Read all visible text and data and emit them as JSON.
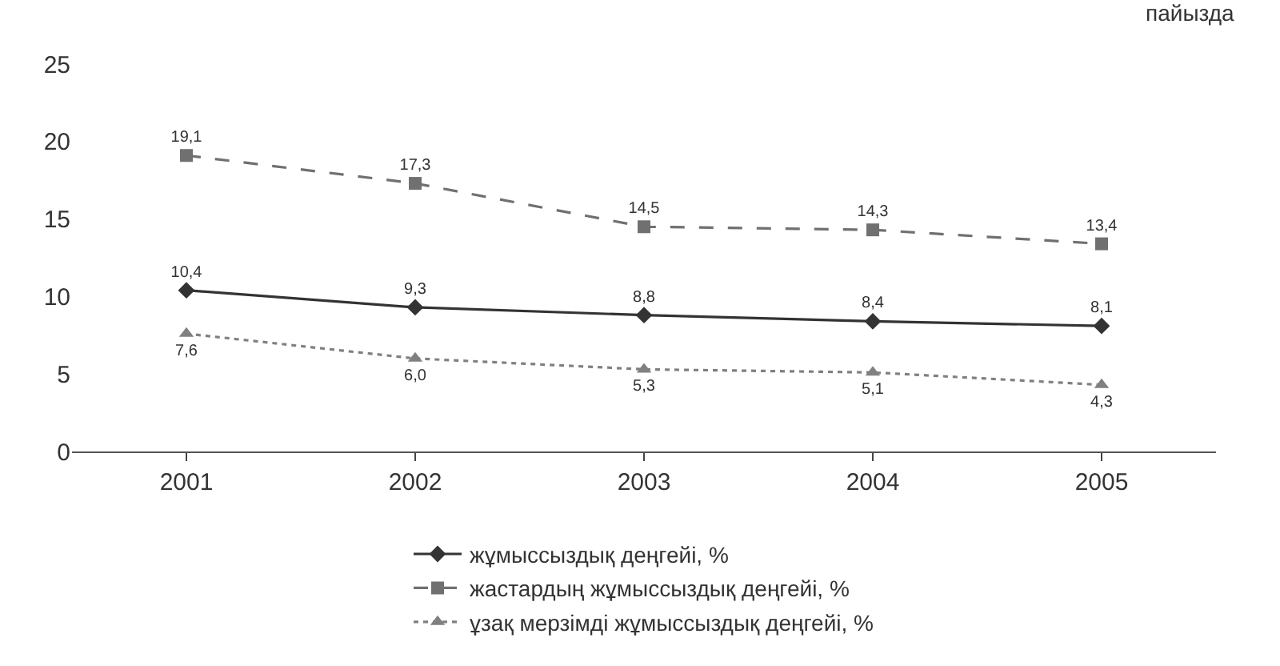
{
  "chart_data": {
    "type": "line",
    "categories": [
      "2001",
      "2002",
      "2003",
      "2004",
      "2005"
    ],
    "series": [
      {
        "name": "жұмыссыздық деңгейі, %",
        "color": "#333333",
        "values": [
          10.4,
          9.3,
          8.8,
          8.4,
          8.1
        ],
        "value_labels": [
          "10,4",
          "9,3",
          "8,8",
          "8,4",
          "8,1"
        ],
        "marker": "diamond",
        "line_style": "solid"
      },
      {
        "name": "жастардың жұмыссыздық деңгейі, %",
        "color": "#707070",
        "values": [
          19.1,
          17.3,
          14.5,
          14.3,
          13.4
        ],
        "value_labels": [
          "19,1",
          "17,3",
          "14,5",
          "14,3",
          "13,4"
        ],
        "marker": "square",
        "line_style": "dashed"
      },
      {
        "name": "ұзақ мерзімді жұмыссыздық деңгейі, %",
        "color": "#808080",
        "values": [
          7.6,
          6.0,
          5.3,
          5.1,
          4.3
        ],
        "value_labels": [
          "7,6",
          "6,0",
          "5,3",
          "5,1",
          "4,3"
        ],
        "marker": "triangle",
        "line_style": "dotted"
      }
    ],
    "ylim": [
      0,
      25
    ],
    "yticks": [
      0,
      5,
      10,
      15,
      20,
      25
    ],
    "legend": "bottom",
    "annotations": [
      "пайызда"
    ]
  }
}
